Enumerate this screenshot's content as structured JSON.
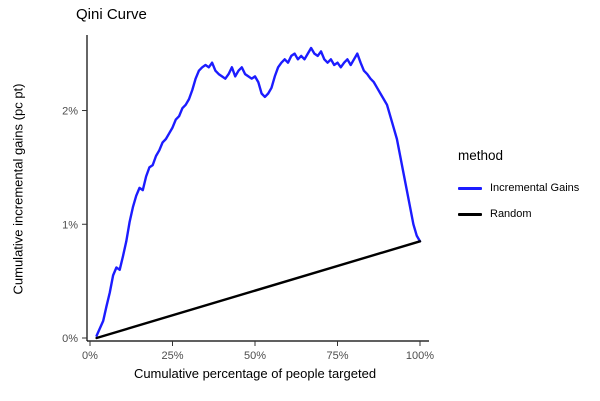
{
  "chart_data": {
    "type": "line",
    "title": "Qini Curve",
    "xlabel": "Cumulative percentage of people targeted",
    "ylabel": "Cumulative incremental gains (pc pt)",
    "xlim": [
      0,
      100
    ],
    "ylim": [
      0,
      2.62
    ],
    "grid": false,
    "x_ticks": [
      {
        "value": 0,
        "label": "0%"
      },
      {
        "value": 25,
        "label": "25%"
      },
      {
        "value": 50,
        "label": "50%"
      },
      {
        "value": 75,
        "label": "75%"
      },
      {
        "value": 100,
        "label": "100%"
      }
    ],
    "y_ticks": [
      {
        "value": 0,
        "label": "0%"
      },
      {
        "value": 1,
        "label": "1%"
      },
      {
        "value": 2,
        "label": "2%"
      }
    ],
    "legend": {
      "title": "method",
      "position": "right",
      "entries": [
        {
          "label": "Incremental Gains",
          "color": "#1c1cff"
        },
        {
          "label": "Random",
          "color": "#000000"
        }
      ]
    },
    "series": [
      {
        "name": "Incremental Gains",
        "color": "#1c1cff",
        "width": 2.4,
        "x": [
          2,
          4,
          5,
          6,
          7,
          8,
          9,
          10,
          11,
          12,
          13,
          14,
          15,
          16,
          17,
          18,
          19,
          20,
          21,
          22,
          23,
          24,
          25,
          26,
          27,
          28,
          29,
          30,
          31,
          32,
          33,
          34,
          35,
          36,
          37,
          38,
          39,
          40,
          41,
          42,
          43,
          44,
          45,
          46,
          47,
          48,
          49,
          50,
          51,
          52,
          53,
          54,
          55,
          56,
          57,
          58,
          59,
          60,
          61,
          62,
          63,
          64,
          65,
          66,
          67,
          68,
          69,
          70,
          71,
          72,
          73,
          74,
          75,
          76,
          77,
          78,
          79,
          80,
          81,
          82,
          83,
          84,
          85,
          86,
          87,
          88,
          89,
          90,
          91,
          92,
          93,
          94,
          95,
          96,
          97,
          98,
          99,
          100
        ],
        "y": [
          0.02,
          0.15,
          0.28,
          0.4,
          0.55,
          0.62,
          0.6,
          0.72,
          0.85,
          1.02,
          1.15,
          1.25,
          1.32,
          1.3,
          1.42,
          1.5,
          1.52,
          1.6,
          1.65,
          1.72,
          1.75,
          1.8,
          1.85,
          1.92,
          1.95,
          2.02,
          2.05,
          2.1,
          2.18,
          2.28,
          2.35,
          2.38,
          2.4,
          2.38,
          2.42,
          2.35,
          2.32,
          2.3,
          2.28,
          2.32,
          2.38,
          2.3,
          2.35,
          2.38,
          2.32,
          2.3,
          2.28,
          2.3,
          2.25,
          2.15,
          2.12,
          2.15,
          2.2,
          2.3,
          2.38,
          2.42,
          2.45,
          2.42,
          2.48,
          2.5,
          2.45,
          2.48,
          2.45,
          2.5,
          2.55,
          2.5,
          2.48,
          2.52,
          2.45,
          2.42,
          2.45,
          2.4,
          2.42,
          2.38,
          2.42,
          2.45,
          2.4,
          2.45,
          2.5,
          2.42,
          2.35,
          2.32,
          2.28,
          2.25,
          2.2,
          2.15,
          2.1,
          2.05,
          1.95,
          1.85,
          1.75,
          1.6,
          1.45,
          1.3,
          1.15,
          1.0,
          0.9,
          0.85
        ]
      },
      {
        "name": "Random",
        "color": "#000000",
        "width": 2.4,
        "x": [
          2,
          100
        ],
        "y": [
          0.0,
          0.85
        ]
      }
    ]
  }
}
